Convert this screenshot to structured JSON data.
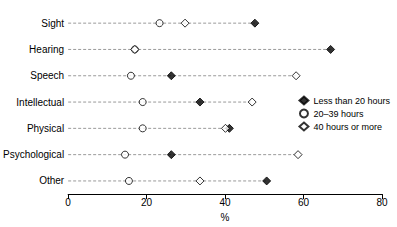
{
  "chart_data": {
    "type": "scatter",
    "x_label": "%",
    "categories": [
      "Sight",
      "Hearing",
      "Speech",
      "Intellectual",
      "Physical",
      "Psychological",
      "Other"
    ],
    "series": [
      {
        "name": "Less than 20 hours",
        "color": "#000000",
        "marker": "filled_diamond",
        "values": [
          47.6,
          66.9,
          26.3,
          33.6,
          41.1,
          26.3,
          50.6
        ]
      },
      {
        "name": "20–39 hours",
        "color": "#000000",
        "marker": "open_circle",
        "values": [
          23.3,
          17,
          16,
          19,
          19,
          14.5,
          15.5
        ]
      },
      {
        "name": "40 hours or more",
        "color": "#000000",
        "marker": "open_diamond",
        "values": [
          29.8,
          17,
          58.1,
          46.9,
          40.1,
          58.6,
          33.6
        ]
      }
    ],
    "orientation": "horizontal",
    "xlim": [
      0,
      80
    ],
    "xticks": [
      0,
      20,
      40,
      60,
      80
    ],
    "legend": "right",
    "grid": false
  }
}
